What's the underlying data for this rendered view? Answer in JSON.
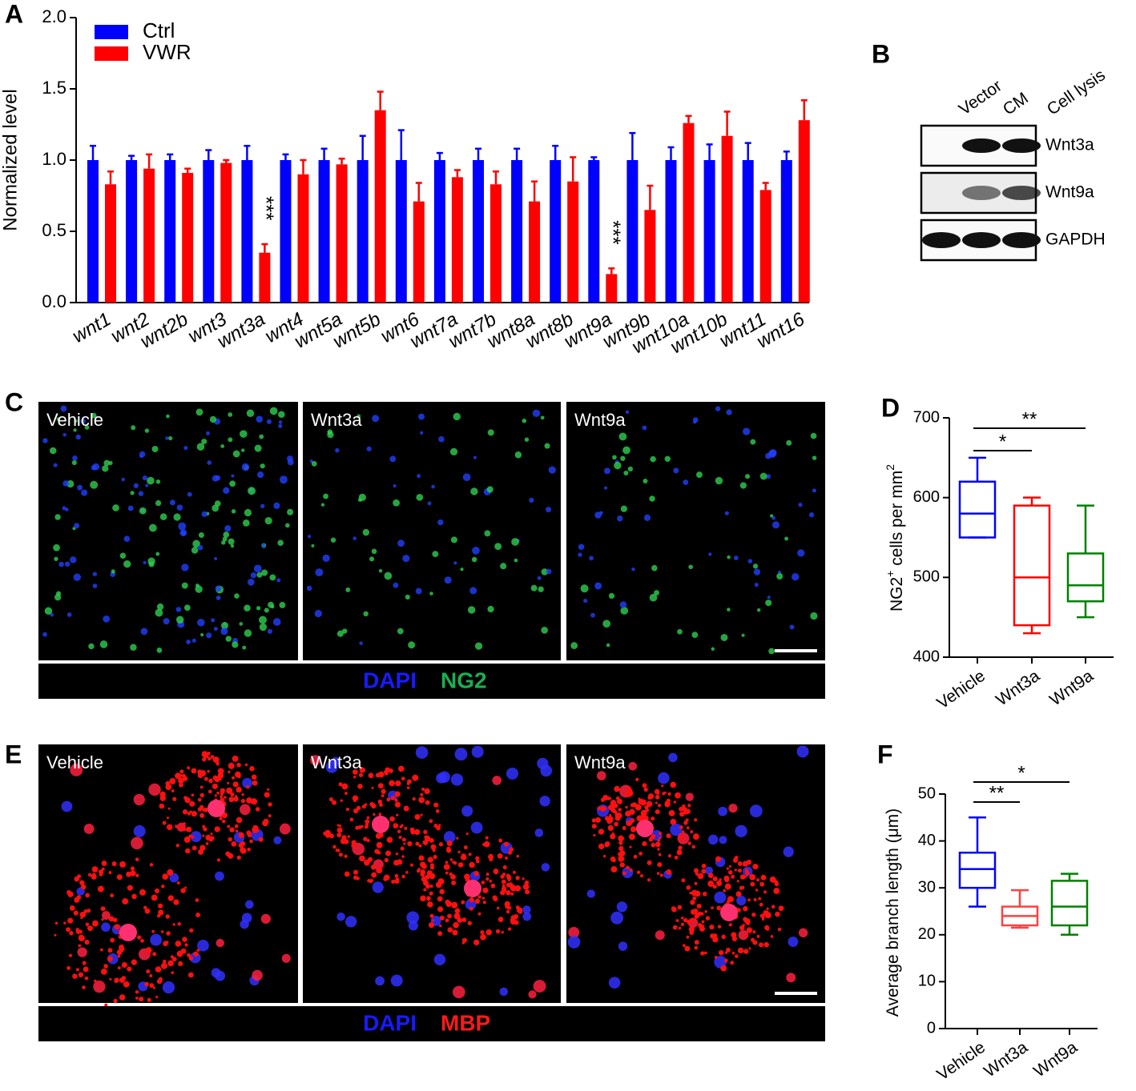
{
  "chart_data": [
    {
      "type": "bar",
      "panel": "A",
      "ylabel": "Normalized level",
      "categories": [
        "wnt1",
        "wnt2",
        "wnt2b",
        "wnt3",
        "wnt3a",
        "wnt4",
        "wnt5a",
        "wnt5b",
        "wnt6",
        "wnt7a",
        "wnt7b",
        "wnt8a",
        "wnt8b",
        "wnt9a",
        "wnt9b",
        "wnt10a",
        "wnt10b",
        "wnt11",
        "wnt16"
      ],
      "series": [
        {
          "name": "Ctrl",
          "color": "#0000ff",
          "values": [
            1,
            1,
            1,
            1,
            1,
            1,
            1,
            1,
            1,
            1,
            1,
            1,
            1,
            1,
            1,
            1,
            1,
            1,
            1
          ],
          "errors": [
            0.1,
            0.03,
            0.04,
            0.07,
            0.1,
            0.04,
            0.08,
            0.17,
            0.21,
            0.05,
            0.08,
            0.08,
            0.1,
            0.02,
            0.19,
            0.09,
            0.11,
            0.12,
            0.06
          ]
        },
        {
          "name": "VWR",
          "color": "#ff0000",
          "values": [
            0.83,
            0.94,
            0.91,
            0.98,
            0.35,
            0.9,
            0.97,
            1.35,
            0.71,
            0.88,
            0.83,
            0.71,
            0.85,
            0.2,
            0.65,
            1.26,
            1.17,
            0.79,
            1.28
          ],
          "errors": [
            0.09,
            0.1,
            0.03,
            0.02,
            0.06,
            0.1,
            0.04,
            0.13,
            0.13,
            0.05,
            0.09,
            0.14,
            0.17,
            0.04,
            0.17,
            0.05,
            0.17,
            0.05,
            0.14
          ]
        }
      ],
      "annotations": [
        {
          "label": "***",
          "category": "wnt3a"
        },
        {
          "label": "***",
          "category": "wnt9a"
        }
      ],
      "ylim": [
        0,
        2
      ],
      "yticks": [
        {
          "value": 0,
          "label": "0.0"
        },
        0.5,
        {
          "value": 1,
          "label": "1.0"
        },
        1.5,
        {
          "value": 2,
          "label": "2.0"
        }
      ],
      "legend": "upper left"
    },
    {
      "type": "box",
      "panel": "D",
      "ylabel": [
        "NG2",
        "+",
        " cells per mm",
        "2"
      ],
      "categories": [
        "Vehicle",
        "Wnt3a",
        "Wnt9a"
      ],
      "colors": [
        "#0000ff",
        "#ff0000",
        "#008000"
      ],
      "min": [
        550,
        430,
        450
      ],
      "q1": [
        550,
        440,
        470
      ],
      "median": [
        580,
        500,
        490
      ],
      "q3": [
        620,
        590,
        530
      ],
      "max": [
        650,
        600,
        590
      ],
      "comparisons": [
        {
          "label": "*",
          "from": "Vehicle",
          "to": "Wnt3a"
        },
        {
          "label": "**",
          "from": "Vehicle",
          "to": "Wnt9a"
        }
      ],
      "ylim": [
        400,
        700
      ],
      "yticks": [
        400,
        500,
        600,
        700
      ]
    },
    {
      "type": "box",
      "panel": "F",
      "ylabel": [
        "Average branch length (μm)"
      ],
      "categories": [
        "Vehicle",
        "Wnt3a",
        "Wnt9a"
      ],
      "colors": [
        "#0000ff",
        "#ff4040",
        "#008000"
      ],
      "min": [
        26,
        21.5,
        20
      ],
      "q1": [
        30,
        22,
        22
      ],
      "median": [
        34,
        24,
        26
      ],
      "q3": [
        37.5,
        26,
        31.5
      ],
      "max": [
        45,
        29.5,
        33
      ],
      "comparisons": [
        {
          "label": "**",
          "from": "Vehicle",
          "to": "Wnt3a"
        },
        {
          "label": "*",
          "from": "Vehicle",
          "to": "Wnt9a"
        }
      ],
      "ylim": [
        0,
        50
      ],
      "yticks": [
        0,
        10,
        20,
        30,
        40,
        50
      ]
    }
  ],
  "blot": {
    "panel": "B",
    "columns": [
      "Vector",
      "CM",
      "Cell lysis"
    ],
    "rows": [
      "Wnt3a",
      "Wnt9a",
      "GAPDH"
    ]
  },
  "images": [
    {
      "panel": "C",
      "conditions": [
        "Vehicle",
        "Wnt3a",
        "Wnt9a"
      ],
      "stains": [
        "DAPI",
        "NG2"
      ]
    },
    {
      "panel": "E",
      "conditions": [
        "Vehicle",
        "Wnt3a",
        "Wnt9a"
      ],
      "stains": [
        "DAPI",
        "MBP"
      ]
    }
  ]
}
